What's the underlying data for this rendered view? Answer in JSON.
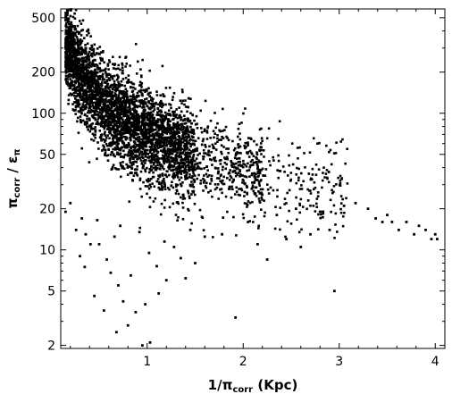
{
  "chart_data": {
    "type": "scatter",
    "title": "",
    "xlabel": {
      "symbol": "1/π",
      "subscript": "corr",
      "units": " (Kpc)"
    },
    "ylabel": {
      "numerator": "π",
      "numerator_subscript": "corr",
      "separator": " / ",
      "denominator": "ε",
      "denominator_subscript": "π"
    },
    "x_scale": "linear",
    "y_scale": "log",
    "xlim": [
      0.1,
      4.1
    ],
    "ylim": [
      1.9,
      580
    ],
    "x_ticks": [
      {
        "value": 1,
        "label": "1"
      },
      {
        "value": 2,
        "label": "2"
      },
      {
        "value": 3,
        "label": "3"
      },
      {
        "value": 4,
        "label": "4"
      }
    ],
    "y_ticks": [
      {
        "value": 2,
        "label": "2"
      },
      {
        "value": 5,
        "label": "5"
      },
      {
        "value": 10,
        "label": "10"
      },
      {
        "value": 20,
        "label": "20"
      },
      {
        "value": 50,
        "label": "50"
      },
      {
        "value": 100,
        "label": "100"
      },
      {
        "value": 200,
        "label": "200"
      },
      {
        "value": 500,
        "label": "500"
      }
    ],
    "grid": false,
    "legend": "none",
    "marker_color": "#000000",
    "outlier_points": [
      [
        3.17,
        22
      ],
      [
        3.3,
        20
      ],
      [
        3.38,
        17
      ],
      [
        3.45,
        16
      ],
      [
        3.5,
        18
      ],
      [
        3.55,
        16
      ],
      [
        3.62,
        14
      ],
      [
        3.7,
        16
      ],
      [
        3.78,
        13
      ],
      [
        3.83,
        15
      ],
      [
        3.9,
        14
      ],
      [
        3.96,
        12
      ],
      [
        4.0,
        13
      ],
      [
        4.02,
        12
      ],
      [
        2.95,
        5.0
      ],
      [
        1.92,
        3.2
      ],
      [
        1.5,
        8
      ],
      [
        1.28,
        10.5
      ],
      [
        1.78,
        13
      ],
      [
        1.2,
        6
      ],
      [
        0.75,
        4.2
      ],
      [
        0.8,
        2.8
      ],
      [
        0.95,
        2.0
      ],
      [
        1.03,
        2.1
      ],
      [
        0.45,
        4.6
      ],
      [
        0.55,
        3.6
      ],
      [
        0.35,
        7.5
      ],
      [
        0.3,
        9
      ],
      [
        0.5,
        11
      ],
      [
        0.62,
        6.8
      ],
      [
        0.7,
        5.5
      ],
      [
        0.88,
        3.5
      ],
      [
        0.98,
        4.0
      ],
      [
        1.1,
        7.6
      ],
      [
        1.35,
        8.7
      ],
      [
        1.6,
        12.5
      ],
      [
        2.15,
        11
      ],
      [
        2.25,
        8.5
      ],
      [
        2.45,
        12
      ],
      [
        2.7,
        13
      ],
      [
        2.9,
        14
      ],
      [
        2.6,
        10.5
      ],
      [
        0.41,
        11
      ],
      [
        0.58,
        8.5
      ],
      [
        0.66,
        12.5
      ],
      [
        0.83,
        6.5
      ],
      [
        1.02,
        9.5
      ],
      [
        1.18,
        11.5
      ],
      [
        0.36,
        13
      ],
      [
        0.72,
        15
      ],
      [
        0.92,
        13.5
      ],
      [
        1.45,
        14
      ],
      [
        2.05,
        16
      ],
      [
        2.35,
        18
      ],
      [
        2.55,
        20
      ],
      [
        2.8,
        19
      ],
      [
        3.05,
        21
      ],
      [
        0.26,
        14
      ],
      [
        0.32,
        17
      ],
      [
        0.48,
        16.5
      ],
      [
        0.68,
        2.5
      ],
      [
        1.12,
        4.8
      ],
      [
        1.4,
        6.2
      ],
      [
        0.2,
        22
      ],
      [
        0.15,
        19
      ]
    ]
  }
}
